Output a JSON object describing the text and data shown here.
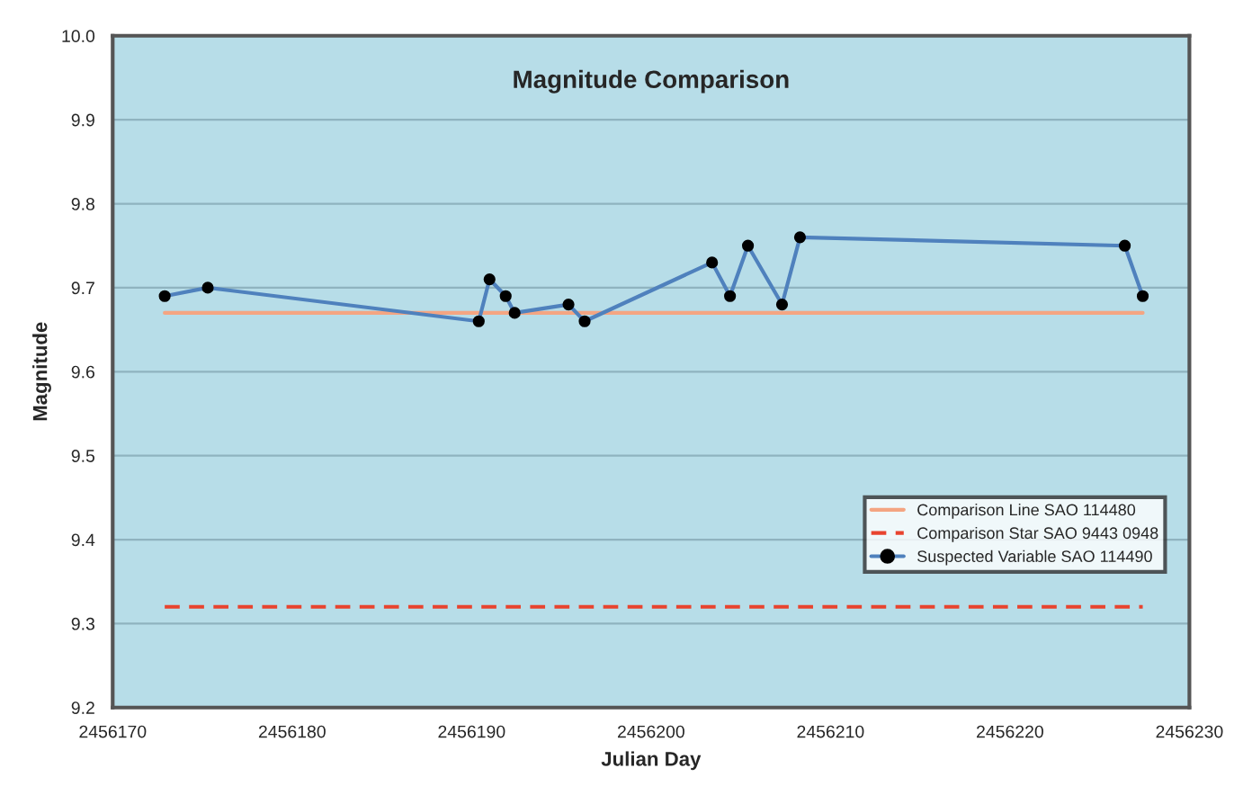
{
  "chart_data": {
    "type": "line",
    "title": "Magnitude Comparison",
    "xlabel": "Julian Day",
    "ylabel": "Magnitude",
    "xlim": [
      2456170,
      2456230
    ],
    "xticks": [
      2456170,
      2456180,
      2456190,
      2456200,
      2456210,
      2456220,
      2456230
    ],
    "ylim": [
      9.2,
      10.0
    ],
    "yticks": [
      {
        "value": 9.2,
        "label": "9.2"
      },
      {
        "value": 9.3,
        "label": "9.3"
      },
      {
        "value": 9.4,
        "label": "9.4"
      },
      {
        "value": 9.5,
        "label": "9.5"
      },
      {
        "value": 9.6,
        "label": "9.6"
      },
      {
        "value": 9.7,
        "label": "9.7"
      },
      {
        "value": 9.8,
        "label": "9.8"
      },
      {
        "value": 9.9,
        "label": "9.9"
      },
      {
        "value": 10.0,
        "label": "10.0"
      }
    ],
    "grid": "y",
    "legend": "bottom right",
    "series": [
      {
        "name": "Comparison Line SAO 114480",
        "color": "#f4a582",
        "line_style": "solid",
        "marker": "none",
        "x": [
          2456172.9,
          2456227.4
        ],
        "values": [
          9.67,
          9.67
        ]
      },
      {
        "name": "Comparison Star SAO 9443 0948",
        "color": "#e8432e",
        "line_style": "dashed",
        "marker": "none",
        "x": [
          2456172.9,
          2456227.4
        ],
        "values": [
          9.32,
          9.32
        ]
      },
      {
        "name": "Suspected Variable SAO 114490",
        "color": "#4f81bd",
        "line_style": "solid",
        "marker": "circle",
        "x": [
          2456172.9,
          2456175.3,
          2456190.4,
          2456191.0,
          2456191.9,
          2456192.4,
          2456195.4,
          2456196.3,
          2456203.4,
          2456204.4,
          2456205.4,
          2456207.3,
          2456208.3,
          2456226.4,
          2456227.4
        ],
        "values": [
          9.69,
          9.7,
          9.66,
          9.71,
          9.69,
          9.67,
          9.68,
          9.66,
          9.73,
          9.69,
          9.75,
          9.68,
          9.76,
          9.75,
          9.69
        ]
      }
    ]
  }
}
